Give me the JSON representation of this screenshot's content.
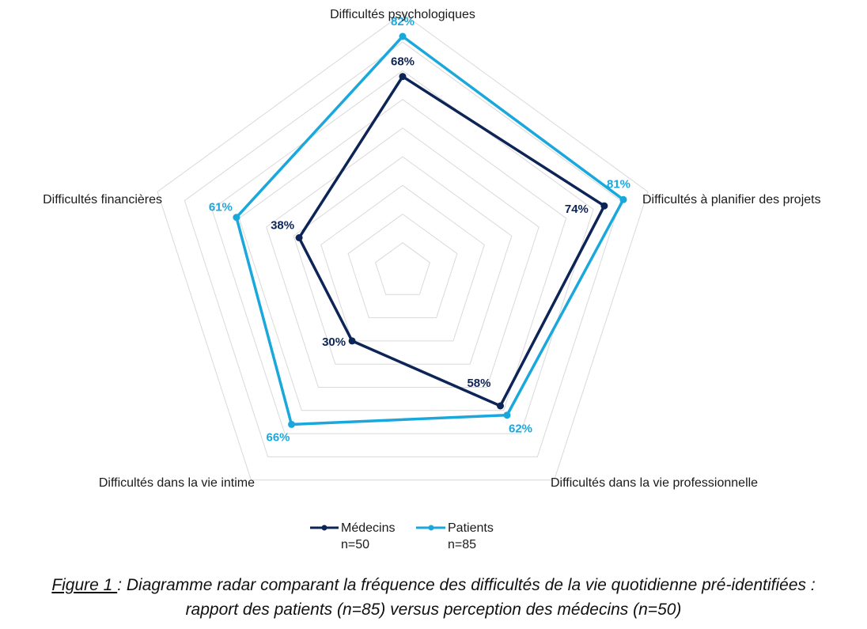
{
  "chart_data": {
    "type": "radar",
    "categories": [
      "Difficultés psychologiques",
      "Difficultés à planifier des projets",
      "Difficultés dans la vie professionnelle",
      "Difficultés dans la vie intime",
      "Difficultés financières"
    ],
    "series": [
      {
        "name": "Médecins",
        "subtitle": "n=50",
        "values": [
          68,
          74,
          58,
          30,
          38
        ],
        "labels": [
          "68%",
          "74%",
          "58%",
          "30%",
          "38%"
        ],
        "color": "#0d2457"
      },
      {
        "name": "Patients",
        "subtitle": "n=85",
        "values": [
          82,
          81,
          62,
          66,
          61
        ],
        "labels": [
          "82%",
          "81%",
          "62%",
          "66%",
          "61%"
        ],
        "color": "#1aa8dc"
      }
    ],
    "range": [
      0,
      90
    ],
    "grid": true,
    "grid_color": "#d9d9d9",
    "legend_position": "bottom"
  },
  "caption": {
    "prefix": "Figure 1 ",
    "text": ": Diagramme radar comparant la fréquence des difficultés de la vie quotidienne pré-identifiées : rapport des patients (n=85) versus perception des médecins (n=50)"
  }
}
